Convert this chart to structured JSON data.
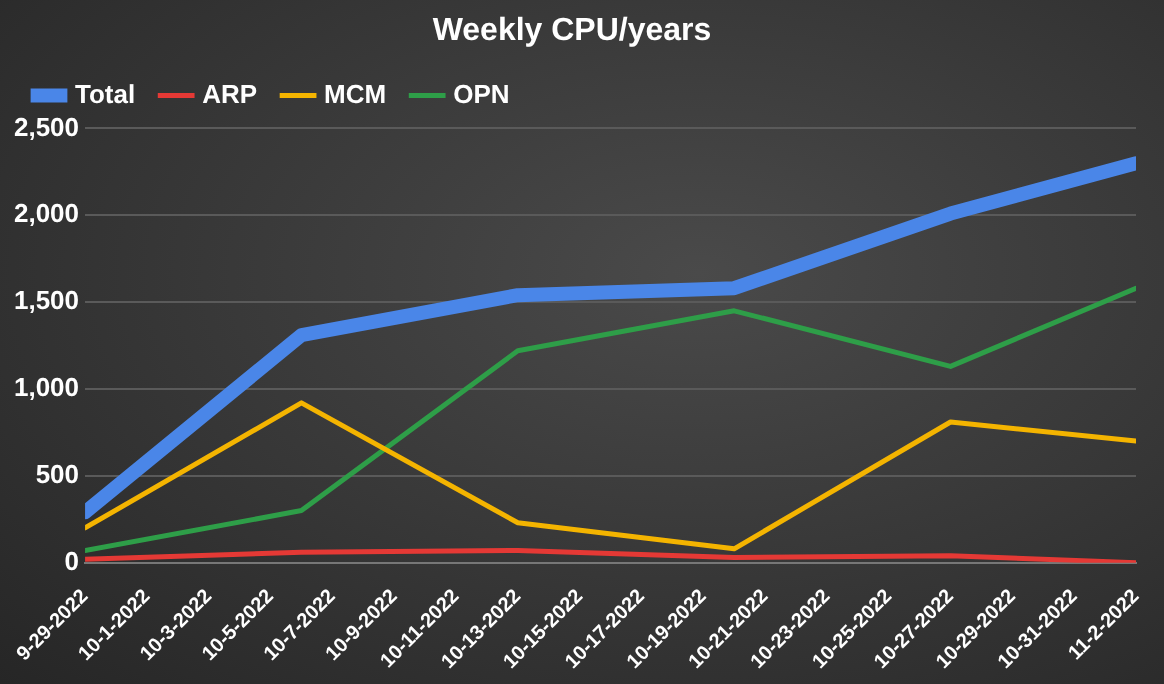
{
  "chart_data": {
    "type": "line",
    "title": "Weekly CPU/years",
    "x": [
      "2022-09-29",
      "2022-10-06",
      "2022-10-13",
      "2022-10-20",
      "2022-10-27",
      "2022-11-02"
    ],
    "series": [
      {
        "name": "Total",
        "color": "#4a86e8",
        "values": [
          290,
          1310,
          1540,
          1580,
          2010,
          2300
        ]
      },
      {
        "name": "ARP",
        "color": "#e53935",
        "values": [
          20,
          60,
          70,
          30,
          40,
          0
        ]
      },
      {
        "name": "MCM",
        "color": "#f4b400",
        "values": [
          200,
          920,
          230,
          80,
          810,
          700
        ]
      },
      {
        "name": "OPN",
        "color": "#2e9e48",
        "values": [
          70,
          300,
          1220,
          1450,
          1130,
          1580
        ]
      }
    ],
    "xlim": [
      "2022-09-29",
      "2022-11-02"
    ],
    "xticks": [
      {
        "value": "2022-09-29",
        "label": "9-29-2022"
      },
      {
        "value": "2022-10-01",
        "label": "10-1-2022"
      },
      {
        "value": "2022-10-03",
        "label": "10-3-2022"
      },
      {
        "value": "2022-10-05",
        "label": "10-5-2022"
      },
      {
        "value": "2022-10-07",
        "label": "10-7-2022"
      },
      {
        "value": "2022-10-09",
        "label": "10-9-2022"
      },
      {
        "value": "2022-10-11",
        "label": "10-11-2022"
      },
      {
        "value": "2022-10-13",
        "label": "10-13-2022"
      },
      {
        "value": "2022-10-15",
        "label": "10-15-2022"
      },
      {
        "value": "2022-10-17",
        "label": "10-17-2022"
      },
      {
        "value": "2022-10-19",
        "label": "10-19-2022"
      },
      {
        "value": "2022-10-21",
        "label": "10-21-2022"
      },
      {
        "value": "2022-10-23",
        "label": "10-23-2022"
      },
      {
        "value": "2022-10-25",
        "label": "10-25-2022"
      },
      {
        "value": "2022-10-27",
        "label": "10-27-2022"
      },
      {
        "value": "2022-10-29",
        "label": "10-29-2022"
      },
      {
        "value": "2022-10-31",
        "label": "10-31-2022"
      },
      {
        "value": "2022-11-02",
        "label": "11-2-2022"
      }
    ],
    "ylim": [
      0,
      2500
    ],
    "yticks": [
      {
        "value": 0,
        "label": "0"
      },
      {
        "value": 500,
        "label": "500"
      },
      {
        "value": 1000,
        "label": "1,000"
      },
      {
        "value": 1500,
        "label": "1,500"
      },
      {
        "value": 2000,
        "label": "2,000"
      },
      {
        "value": 2500,
        "label": "2,500"
      }
    ],
    "grid": "y",
    "legend": "top left"
  }
}
